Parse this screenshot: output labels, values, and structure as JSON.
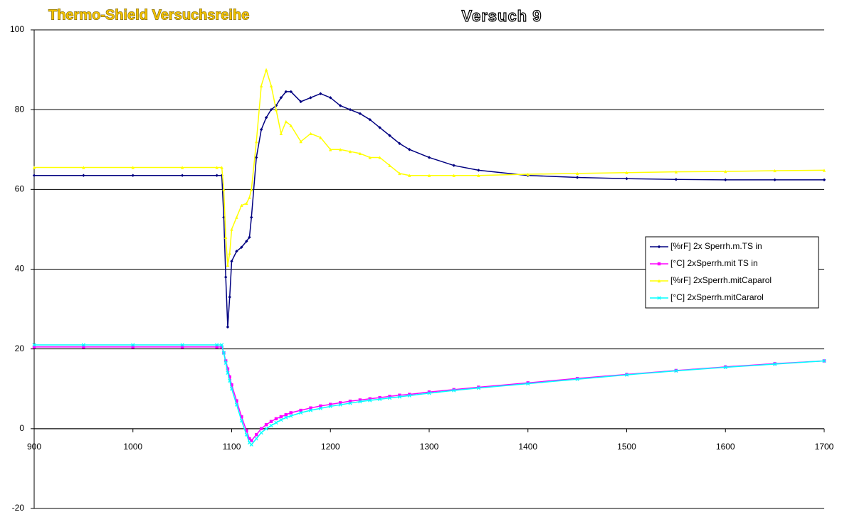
{
  "chart_data": {
    "type": "line",
    "title": "Thermo-Shield Versuchsreihe",
    "subtitle": "Versuch 9",
    "x": [
      900,
      950,
      1000,
      1050,
      1085,
      1090,
      1092,
      1094,
      1096,
      1098,
      1100,
      1105,
      1110,
      1115,
      1118,
      1120,
      1125,
      1130,
      1135,
      1140,
      1145,
      1150,
      1155,
      1160,
      1170,
      1180,
      1190,
      1200,
      1210,
      1220,
      1230,
      1240,
      1250,
      1260,
      1270,
      1280,
      1300,
      1325,
      1350,
      1400,
      1450,
      1500,
      1550,
      1600,
      1650,
      1700
    ],
    "series": [
      {
        "name": "[%rF] 2x Sperrh.m.TS in",
        "color": "#000080",
        "marker": "diamond",
        "values": [
          63.5,
          63.5,
          63.5,
          63.5,
          63.5,
          63.5,
          53,
          38,
          25.5,
          33,
          42,
          44.5,
          45.5,
          47,
          48,
          53,
          68,
          75,
          78,
          80,
          81,
          83,
          84.5,
          84.5,
          82,
          83,
          84,
          83,
          81,
          80,
          79,
          77.5,
          75.5,
          73.5,
          71.5,
          70,
          68,
          66,
          64.8,
          63.5,
          63,
          62.7,
          62.5,
          62.4,
          62.4,
          62.4
        ]
      },
      {
        "name": "[°C] 2xSperrh.mit TS in",
        "color": "#ff00ff",
        "marker": "square",
        "values": [
          20.5,
          20.5,
          20.5,
          20.5,
          20.5,
          20.5,
          19,
          17,
          15,
          13,
          11,
          7,
          3,
          -0.5,
          -2.5,
          -3,
          -1.5,
          0,
          1,
          1.8,
          2.5,
          3,
          3.5,
          4,
          4.6,
          5.2,
          5.7,
          6.1,
          6.5,
          6.9,
          7.2,
          7.5,
          7.8,
          8.1,
          8.4,
          8.6,
          9.2,
          9.8,
          10.4,
          11.5,
          12.6,
          13.6,
          14.6,
          15.5,
          16.3,
          17
        ]
      },
      {
        "name": "[%rF] 2xSperrh.mitCaparol",
        "color": "#ffff00",
        "marker": "triangle",
        "values": [
          65.5,
          65.5,
          65.5,
          65.5,
          65.5,
          65.5,
          60,
          48,
          41,
          44,
          50,
          53,
          56,
          56.5,
          58,
          60,
          72,
          86,
          90,
          86,
          80,
          74,
          77,
          76,
          72,
          74,
          73,
          70,
          70,
          69.5,
          69,
          68,
          68,
          66,
          64,
          63.5,
          63.5,
          63.5,
          63.5,
          63.8,
          64,
          64.2,
          64.4,
          64.5,
          64.7,
          64.8
        ]
      },
      {
        "name": "[°C] 2xSperrh.mitCararol",
        "color": "#00ffff",
        "marker": "x",
        "values": [
          21,
          21,
          21,
          21,
          21,
          21,
          19,
          16.5,
          14,
          12,
          10,
          6,
          2,
          -1.5,
          -3.5,
          -4,
          -2.5,
          -1,
          0,
          0.8,
          1.5,
          2.2,
          2.8,
          3.2,
          4,
          4.6,
          5.1,
          5.6,
          6,
          6.4,
          6.8,
          7.1,
          7.4,
          7.7,
          8,
          8.3,
          8.9,
          9.6,
          10.2,
          11.3,
          12.4,
          13.5,
          14.5,
          15.4,
          16.2,
          17
        ]
      }
    ],
    "xlim": [
      900,
      1700
    ],
    "xticks": [
      900,
      1000,
      1100,
      1200,
      1300,
      1400,
      1500,
      1600,
      1700
    ],
    "ylim": [
      -20,
      100
    ],
    "yticks": [
      -20,
      0,
      20,
      40,
      60,
      80,
      100
    ],
    "grid": true,
    "legend": "right"
  }
}
